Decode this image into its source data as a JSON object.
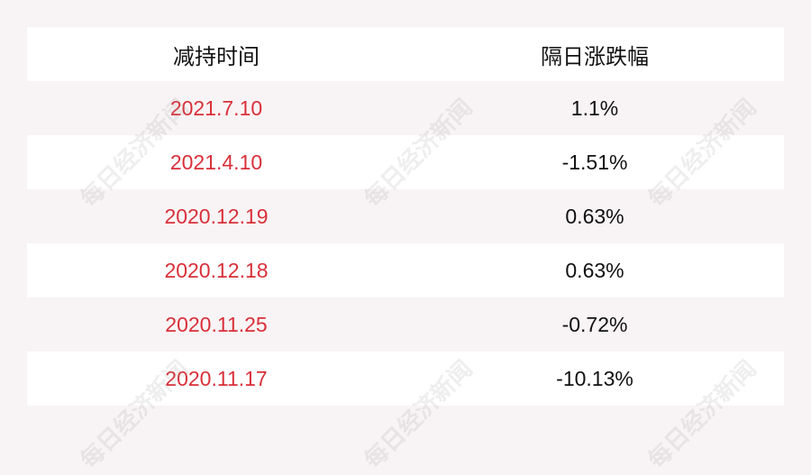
{
  "table": {
    "headers": [
      "减持时间",
      "隔日涨跌幅"
    ],
    "rows": [
      {
        "date": "2021.7.10",
        "change": "1.1%"
      },
      {
        "date": "2021.4.10",
        "change": "-1.51%"
      },
      {
        "date": "2020.12.19",
        "change": "0.63%"
      },
      {
        "date": "2020.12.18",
        "change": "0.63%"
      },
      {
        "date": "2020.11.25",
        "change": "-0.72%"
      },
      {
        "date": "2020.11.17",
        "change": "-10.13%"
      }
    ]
  },
  "watermark": "每日经济新闻",
  "colors": {
    "date_text": "#d9303a",
    "background": "#f8f4f5",
    "row_alt": "#ffffff"
  }
}
